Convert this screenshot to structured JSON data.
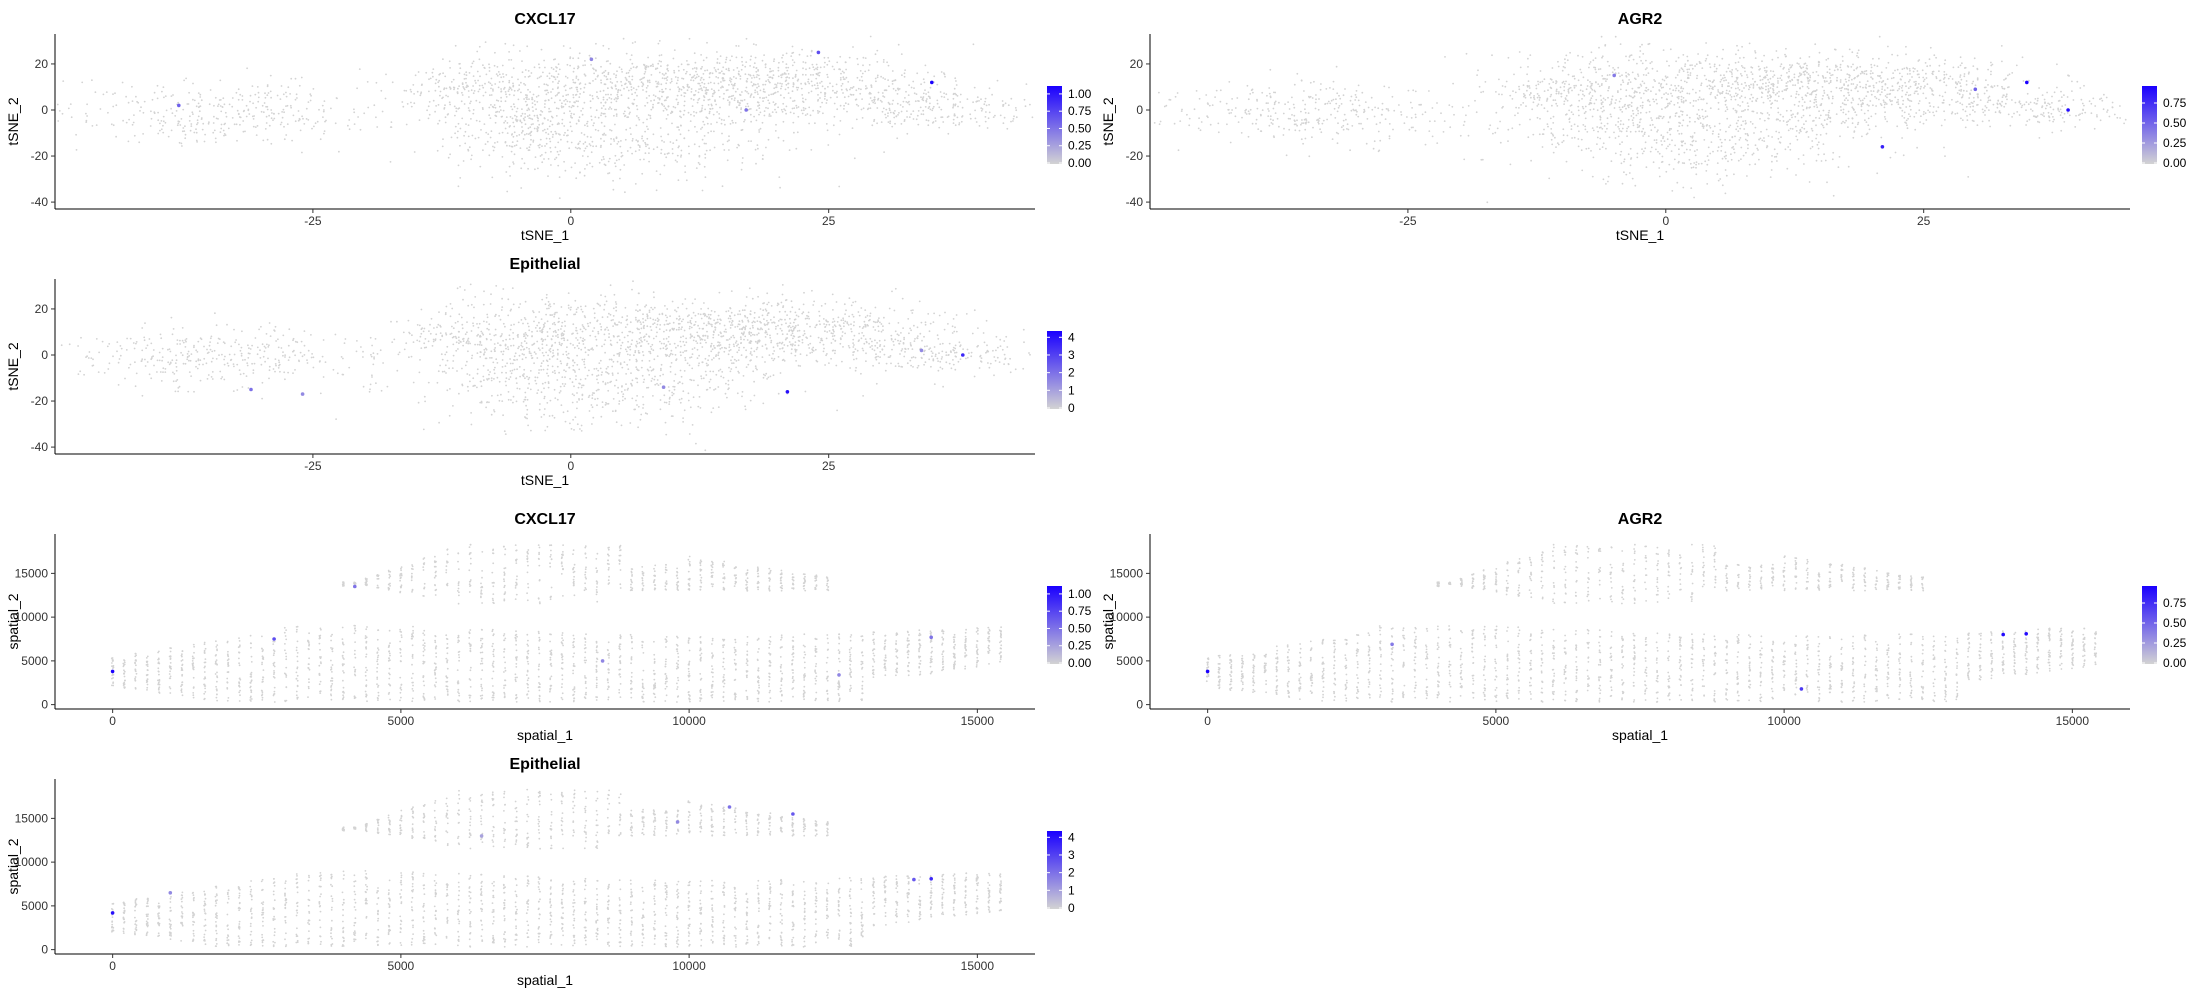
{
  "colors": {
    "low": "#d3d3d3",
    "high": "#1a00ff"
  },
  "chart_data": [
    {
      "type": "scatter",
      "embedding": "tsne",
      "title": "CXCL17",
      "xlabel": "tSNE_1",
      "ylabel": "tSNE_2",
      "xlim": [
        -50,
        45
      ],
      "ylim": [
        -43,
        33
      ],
      "xticks": [
        "-25",
        "0",
        "25"
      ],
      "yticks": [
        "20",
        "0",
        "-20",
        "-40"
      ],
      "legend_ticks": [
        "1.00",
        "0.75",
        "0.50",
        "0.25",
        "0.00"
      ],
      "max_value": 1.1,
      "highlights": [
        [
          -38,
          2,
          0.6
        ],
        [
          24,
          25,
          0.7
        ],
        [
          35,
          12,
          1.1
        ],
        [
          17,
          0,
          0.5
        ],
        [
          2,
          22,
          0.4
        ]
      ]
    },
    {
      "type": "scatter",
      "embedding": "tsne",
      "title": "AGR2",
      "xlabel": "tSNE_1",
      "ylabel": "tSNE_2",
      "xlim": [
        -50,
        45
      ],
      "ylim": [
        -43,
        33
      ],
      "xticks": [
        "-25",
        "0",
        "25"
      ],
      "yticks": [
        "20",
        "0",
        "-20",
        "-40"
      ],
      "legend_ticks": [
        "0.75",
        "0.50",
        "0.25",
        "0.00"
      ],
      "max_value": 0.95,
      "highlights": [
        [
          35,
          12,
          0.95
        ],
        [
          39,
          0,
          0.9
        ],
        [
          21,
          -16,
          0.8
        ],
        [
          -5,
          15,
          0.4
        ],
        [
          30,
          9,
          0.5
        ]
      ]
    },
    {
      "type": "scatter",
      "embedding": "tsne",
      "title": "Epithelial",
      "xlabel": "tSNE_1",
      "ylabel": "tSNE_2",
      "xlim": [
        -50,
        45
      ],
      "ylim": [
        -43,
        33
      ],
      "xticks": [
        "-25",
        "0",
        "25"
      ],
      "yticks": [
        "20",
        "0",
        "-20",
        "-40"
      ],
      "legend_ticks": [
        "4",
        "3",
        "2",
        "1",
        "0"
      ],
      "max_value": 4.3,
      "highlights": [
        [
          38,
          0,
          3.5
        ],
        [
          21,
          -16,
          4.0
        ],
        [
          -31,
          -15,
          2.0
        ],
        [
          -26,
          -17,
          1.5
        ],
        [
          9,
          -14,
          1.5
        ],
        [
          34,
          2,
          1.5
        ]
      ]
    },
    {
      "type": "scatter",
      "embedding": "spatial",
      "title": "CXCL17",
      "xlabel": "spatial_1",
      "ylabel": "spatial_2",
      "xlim": [
        -1000,
        16000
      ],
      "ylim": [
        -500,
        19500
      ],
      "xticks": [
        "0",
        "5000",
        "10000",
        "15000"
      ],
      "yticks": [
        "15000",
        "10000",
        "5000",
        "0"
      ],
      "legend_ticks": [
        "1.00",
        "0.75",
        "0.50",
        "0.25",
        "0.00"
      ],
      "max_value": 1.1,
      "highlights": [
        [
          0,
          3800,
          1.1
        ],
        [
          2800,
          7500,
          0.7
        ],
        [
          4200,
          13500,
          0.5
        ],
        [
          14200,
          7700,
          0.5
        ],
        [
          8500,
          5000,
          0.4
        ],
        [
          12600,
          3400,
          0.4
        ]
      ]
    },
    {
      "type": "scatter",
      "embedding": "spatial",
      "title": "AGR2",
      "xlabel": "spatial_1",
      "ylabel": "spatial_2",
      "xlim": [
        -1000,
        16000
      ],
      "ylim": [
        -500,
        19500
      ],
      "xticks": [
        "0",
        "5000",
        "10000",
        "15000"
      ],
      "yticks": [
        "15000",
        "10000",
        "5000",
        "0"
      ],
      "legend_ticks": [
        "0.75",
        "0.50",
        "0.25",
        "0.00"
      ],
      "max_value": 0.95,
      "highlights": [
        [
          0,
          3800,
          0.95
        ],
        [
          13800,
          8000,
          0.9
        ],
        [
          14200,
          8100,
          0.9
        ],
        [
          10300,
          1800,
          0.7
        ],
        [
          3200,
          6900,
          0.4
        ]
      ]
    },
    {
      "type": "scatter",
      "embedding": "spatial",
      "title": "Epithelial",
      "xlabel": "spatial_1",
      "ylabel": "spatial_2",
      "xlim": [
        -1000,
        16000
      ],
      "ylim": [
        -500,
        19500
      ],
      "xticks": [
        "0",
        "5000",
        "10000",
        "15000"
      ],
      "yticks": [
        "15000",
        "10000",
        "5000",
        "0"
      ],
      "legend_ticks": [
        "4",
        "3",
        "2",
        "1",
        "0"
      ],
      "max_value": 4.3,
      "highlights": [
        [
          0,
          4200,
          4.0
        ],
        [
          14200,
          8100,
          3.5
        ],
        [
          13900,
          8000,
          2.5
        ],
        [
          11800,
          15500,
          2.5
        ],
        [
          10700,
          16300,
          2.0
        ],
        [
          1000,
          6500,
          1.5
        ],
        [
          9800,
          14600,
          1.5
        ],
        [
          6400,
          13000,
          1.0
        ]
      ]
    }
  ]
}
